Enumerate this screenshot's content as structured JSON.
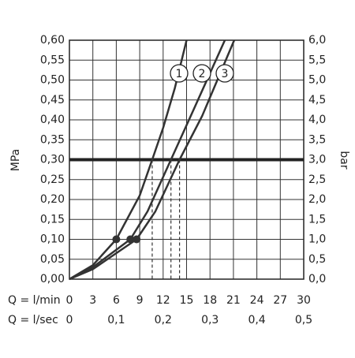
{
  "chart_data": {
    "type": "line",
    "ylabel": "MPa",
    "y2label": "bar",
    "xlabel": "Q = l/min",
    "x2label": "Q = l/sec",
    "xlim": [
      0,
      30
    ],
    "xticks": [
      0,
      3,
      6,
      9,
      12,
      15,
      18,
      21,
      24,
      27,
      30
    ],
    "x2lim": [
      0,
      0.5
    ],
    "x2ticks": [
      0,
      {
        "value": 0.1,
        "label": "0,1"
      },
      {
        "value": 0.2,
        "label": "0,2"
      },
      {
        "value": 0.3,
        "label": "0,3"
      },
      {
        "value": 0.4,
        "label": "0,4"
      },
      {
        "value": 0.5,
        "label": "0,5"
      }
    ],
    "ylim": [
      0,
      0.6
    ],
    "yticks": [
      {
        "value": 0,
        "label": "0,00"
      },
      {
        "value": 0.05,
        "label": "0,05"
      },
      {
        "value": 0.1,
        "label": "0,10"
      },
      {
        "value": 0.15,
        "label": "0,15"
      },
      {
        "value": 0.2,
        "label": "0,20"
      },
      {
        "value": 0.25,
        "label": "0,25"
      },
      {
        "value": 0.3,
        "label": "0,30"
      },
      {
        "value": 0.35,
        "label": "0,35"
      },
      {
        "value": 0.4,
        "label": "0,40"
      },
      {
        "value": 0.45,
        "label": "0,45"
      },
      {
        "value": 0.5,
        "label": "0,50"
      },
      {
        "value": 0.55,
        "label": "0,55"
      },
      {
        "value": 0.6,
        "label": "0,60"
      }
    ],
    "y2lim": [
      0,
      6
    ],
    "y2ticks": [
      {
        "value": 0,
        "label": "0,0"
      },
      {
        "value": 0.5,
        "label": "0,5"
      },
      {
        "value": 1,
        "label": "1,0"
      },
      {
        "value": 1.5,
        "label": "1,5"
      },
      {
        "value": 2,
        "label": "2,0"
      },
      {
        "value": 2.5,
        "label": "2,5"
      },
      {
        "value": 3,
        "label": "3,0"
      },
      {
        "value": 3.5,
        "label": "3,5"
      },
      {
        "value": 4,
        "label": "4,0"
      },
      {
        "value": 4.5,
        "label": "4,5"
      },
      {
        "value": 5,
        "label": "5,0"
      },
      {
        "value": 5.5,
        "label": "5,5"
      },
      {
        "value": 6,
        "label": "6,0"
      }
    ],
    "grid": true,
    "reference_line": 0.3,
    "series": [
      {
        "name": "1",
        "color": "#333333",
        "x": [
          0,
          3,
          6,
          9,
          10.6,
          12,
          13.5,
          15
        ],
        "values": [
          0,
          0.035,
          0.1,
          0.21,
          0.3,
          0.38,
          0.48,
          0.6
        ],
        "dot": {
          "x": 6,
          "y": 0.1
        }
      },
      {
        "name": "2",
        "color": "#333333",
        "x": [
          0,
          3,
          7.8,
          10,
          13,
          16,
          19.9
        ],
        "values": [
          0,
          0.03,
          0.1,
          0.17,
          0.3,
          0.43,
          0.6
        ],
        "dot": {
          "x": 7.8,
          "y": 0.1
        }
      },
      {
        "name": "3",
        "color": "#333333",
        "x": [
          0,
          3,
          8.6,
          11,
          14.1,
          17,
          21.1
        ],
        "values": [
          0,
          0.025,
          0.1,
          0.17,
          0.3,
          0.41,
          0.6
        ],
        "dot": {
          "x": 8.6,
          "y": 0.1
        }
      }
    ]
  }
}
